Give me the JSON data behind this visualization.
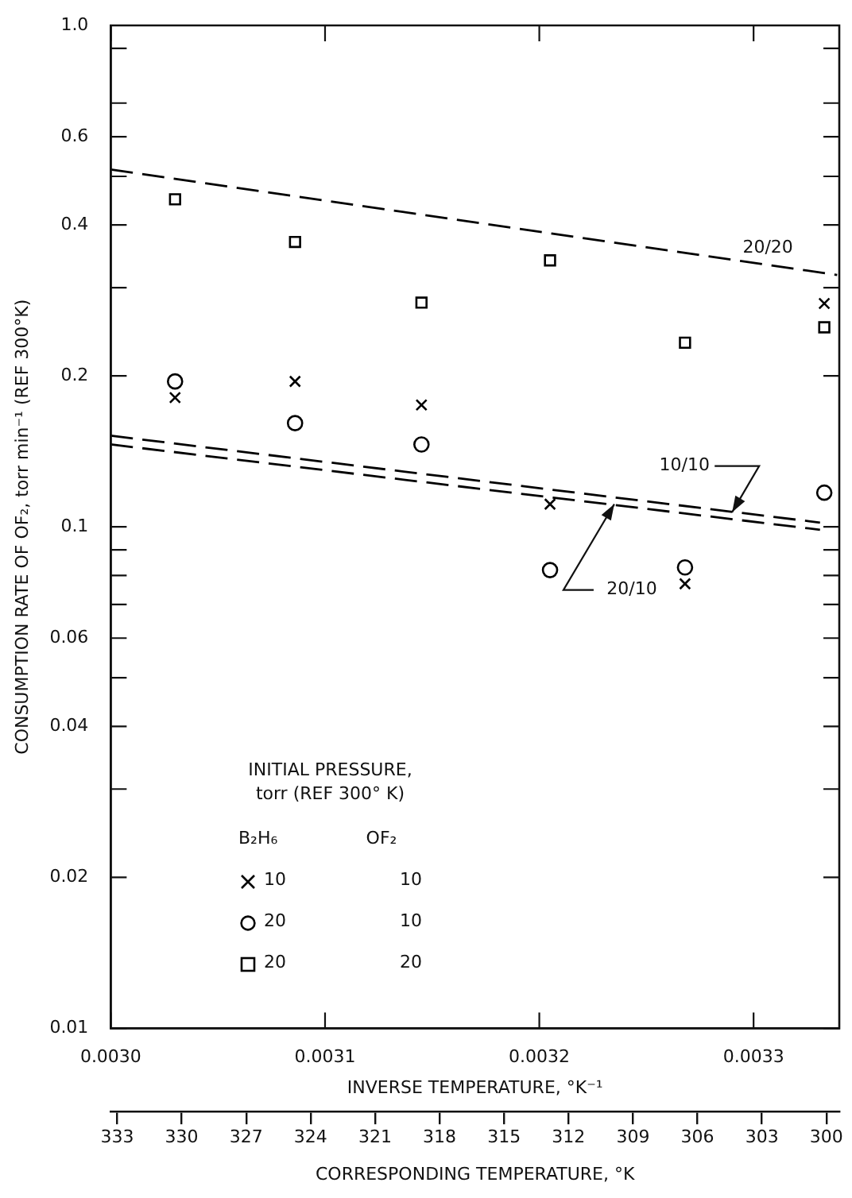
{
  "chart_data": {
    "type": "scatter",
    "ylabel": "CONSUMPTION RATE OF OF₂, torr min⁻¹ (REF 300°K)",
    "xlabel": "INVERSE TEMPERATURE, °K⁻¹",
    "x2label": "CORRESPONDING TEMPERATURE, °K",
    "legend_title": "INITIAL PRESSURE,\ntorr (REF 300° K)",
    "legend": "bottom left",
    "log": "y",
    "xlim": [
      0.003,
      0.00334
    ],
    "xticks": [
      {
        "value": 0.003,
        "label": "0.0030"
      },
      {
        "value": 0.0031,
        "label": "0.0031"
      },
      {
        "value": 0.0032,
        "label": "0.0032"
      },
      {
        "value": 0.0033,
        "label": "0.0033"
      }
    ],
    "x2lim": [
      333.3,
      299.4
    ],
    "x2ticks": [
      333,
      330,
      327,
      324,
      321,
      318,
      315,
      312,
      309,
      306,
      303,
      300
    ],
    "ylim": [
      0.01,
      1.0
    ],
    "yticks": [
      0.01,
      0.02,
      {
        "value": 0.03,
        "label": null
      },
      0.04,
      {
        "value": 0.05,
        "label": null
      },
      0.06,
      {
        "value": 0.07,
        "label": null
      },
      {
        "value": 0.08,
        "label": null
      },
      {
        "value": 0.09,
        "label": null
      },
      0.1,
      0.2,
      {
        "value": 0.3,
        "label": null
      },
      0.4,
      {
        "value": 0.5,
        "label": null
      },
      0.6,
      {
        "value": 0.7,
        "label": null
      },
      {
        "value": 0.9,
        "label": null
      },
      {
        "value": 1.0,
        "label": "1.0"
      }
    ],
    "x": [
      0.00303,
      0.003086,
      0.003145,
      0.003205,
      0.003268,
      0.003333
    ],
    "series": [
      {
        "name": "10 10",
        "type": "scatter",
        "marker": "cross",
        "color": "#000000",
        "values": [
          0.181,
          0.195,
          0.175,
          0.111,
          0.077,
          0.279
        ]
      },
      {
        "name": "20 10",
        "type": "scatter",
        "marker": "circle",
        "color": "#000000",
        "values": [
          0.195,
          0.161,
          0.146,
          0.082,
          0.083,
          0.117
        ]
      },
      {
        "name": "20 20",
        "type": "scatter",
        "marker": "square",
        "color": "#000000",
        "values": [
          0.45,
          0.37,
          0.28,
          0.34,
          0.233,
          0.25
        ]
      },
      {
        "type": "line",
        "marker": "none",
        "line_style": "dashed",
        "color": "#000000",
        "x": [
          0.003,
          0.003339
        ],
        "values": [
          0.516,
          0.318
        ]
      },
      {
        "type": "line",
        "marker": "none",
        "line_style": "dashed",
        "color": "#000000",
        "x": [
          0.003,
          0.003331
        ],
        "values": [
          0.152,
          0.102
        ]
      },
      {
        "type": "line",
        "marker": "none",
        "line_style": "dashed",
        "color": "#000000",
        "x": [
          0.003,
          0.003331
        ],
        "values": [
          0.146,
          0.0987
        ]
      }
    ],
    "annotations": [
      "B₂H₆",
      "OF₂",
      {
        "text": "20/20",
        "x": 0.00332,
        "y": 0.33
      },
      {
        "text": "10/10",
        "x": 0.00329,
        "y": 0.107
      },
      {
        "text": "20/10",
        "x": 0.003235,
        "y": 0.111
      }
    ]
  }
}
